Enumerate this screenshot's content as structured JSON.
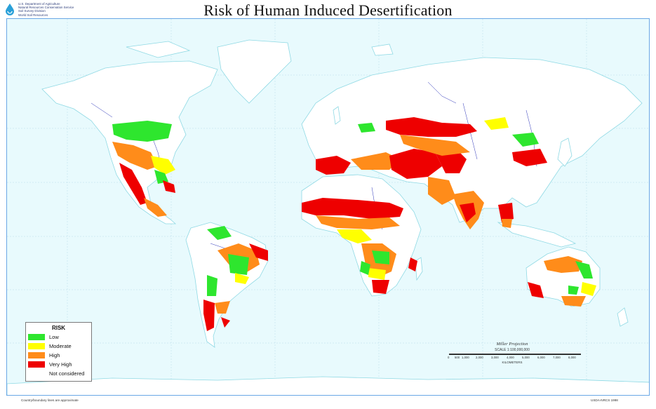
{
  "header": {
    "agency_lines": [
      "U.S. Department of Agriculture",
      "Natural Resources Conservation Service",
      "Soil Survey Division",
      "World Soil Resources"
    ],
    "title": "Risk of Human Induced Desertification"
  },
  "legend": {
    "title": "RISK",
    "items": [
      {
        "label": "Low",
        "color": "#2ee62e"
      },
      {
        "label": "Moderate",
        "color": "#ffff00"
      },
      {
        "label": "High",
        "color": "#ff8c1a"
      },
      {
        "label": "Very High",
        "color": "#ee0000"
      },
      {
        "label": "Not considered",
        "color": "#ffffff"
      }
    ]
  },
  "scale": {
    "projection": "Miller Projection",
    "scale_text": "SCALE 1:100,000,000",
    "ticks": [
      "0",
      "500",
      "1,000",
      "2,000",
      "3,000",
      "4,000",
      "5,000",
      "6,000",
      "7,000",
      "8,000"
    ],
    "unit": "KILOMETERS"
  },
  "footer": {
    "source": "Country/boundary lines are approximate",
    "credit": "USDA-NRCS 1998"
  },
  "colors": {
    "water": "#e8fafd",
    "land": "#ffffff",
    "outline": "#8fd9e4",
    "rivers": "#2b33b8",
    "grid": "#b9dde8",
    "frame": "#6aa7e6"
  }
}
